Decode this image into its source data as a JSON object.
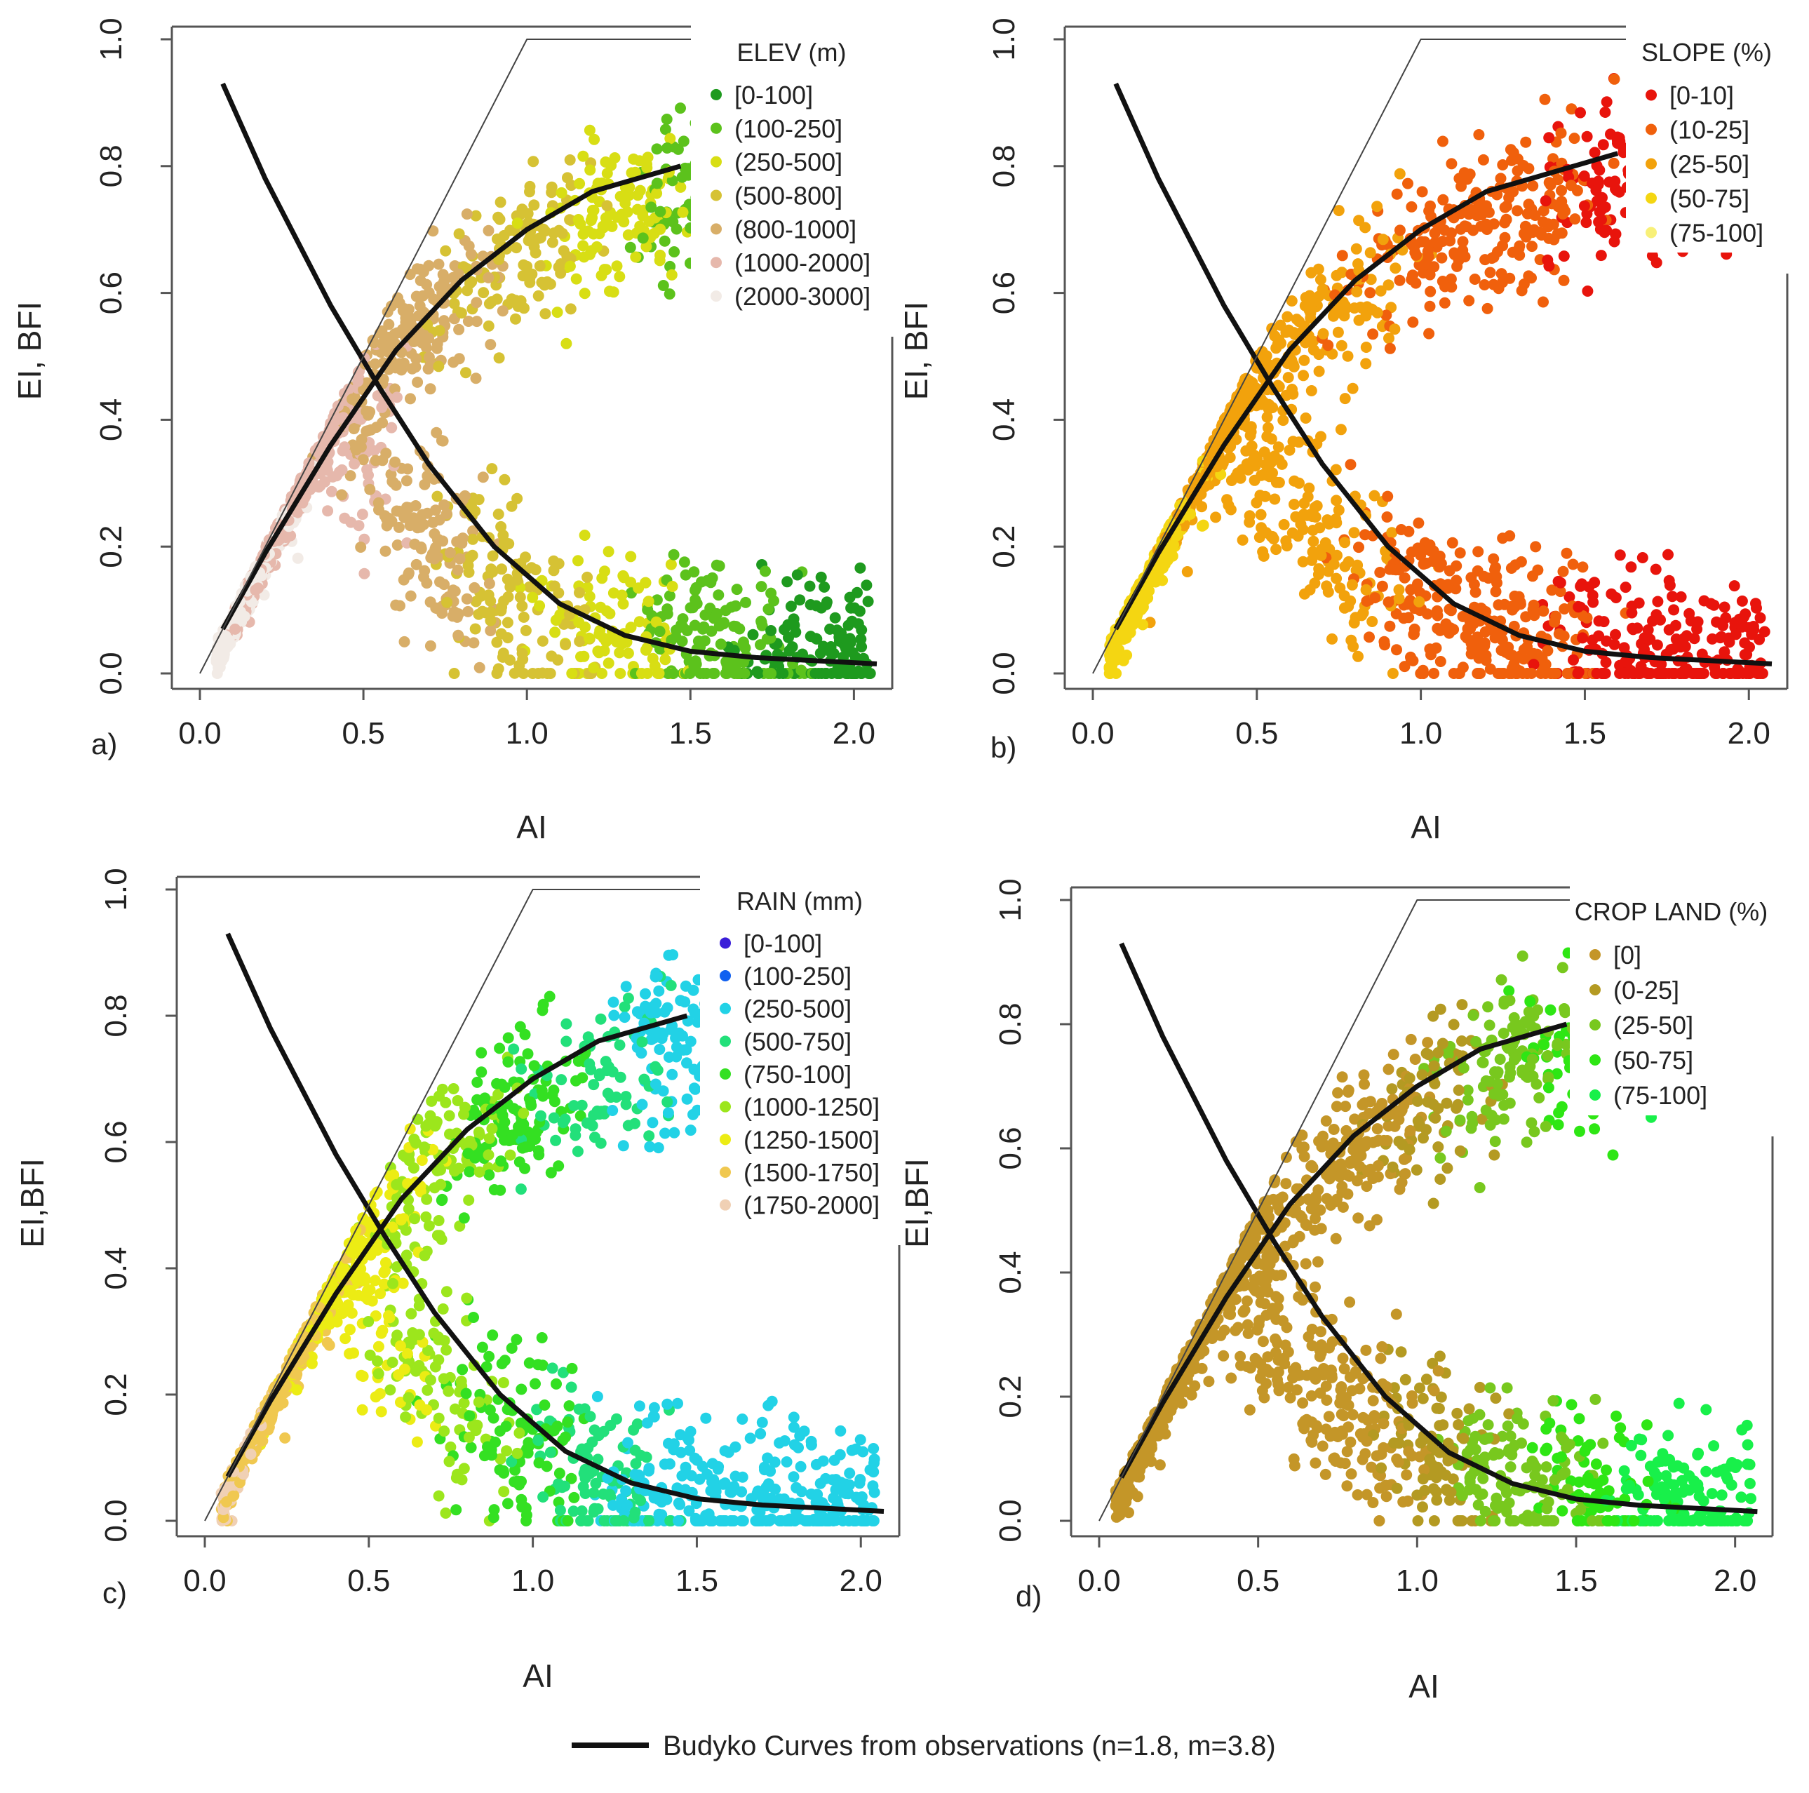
{
  "figure": {
    "footer": {
      "label": "Budyko Curves from observations (n=1.8, m=3.8)"
    }
  },
  "chart_data": [
    {
      "type": "scatter",
      "panel": "a)",
      "xlabel": "AI",
      "ylabel": "EI, BFI",
      "xlim": [
        0.0,
        2.1
      ],
      "ylim": [
        0.0,
        1.0
      ],
      "xticks": [
        "0.0",
        "0.5",
        "1.0",
        "1.5",
        "2.0"
      ],
      "yticks": [
        "0.0",
        "0.2",
        "0.4",
        "0.6",
        "0.8",
        "1.0"
      ],
      "legend_title": "ELEV (m)",
      "legend": [
        {
          "label": "[0-100]",
          "color": "#1e9a1e"
        },
        {
          "label": "(100-250]",
          "color": "#5cc21c"
        },
        {
          "label": "(250-500]",
          "color": "#d8de14"
        },
        {
          "label": "(500-800]",
          "color": "#d6c234"
        },
        {
          "label": "(800-1000]",
          "color": "#d8ae68"
        },
        {
          "label": "(1000-2000]",
          "color": "#e6b8ac"
        },
        {
          "label": "(2000-3000]",
          "color": "#f2ebe6"
        }
      ],
      "curves": [
        {
          "name": "EI",
          "x": [
            0.07,
            0.2,
            0.4,
            0.6,
            0.8,
            1.0,
            1.2,
            1.47
          ],
          "y": [
            0.07,
            0.19,
            0.36,
            0.51,
            0.62,
            0.7,
            0.76,
            0.8
          ]
        },
        {
          "name": "BFI",
          "x": [
            0.07,
            0.2,
            0.4,
            0.55,
            0.7,
            0.9,
            1.1,
            1.3,
            1.5,
            1.7,
            2.07
          ],
          "y": [
            0.93,
            0.78,
            0.58,
            0.45,
            0.33,
            0.2,
            0.11,
            0.06,
            0.035,
            0.025,
            0.015
          ]
        },
        {
          "name": "limit",
          "x": [
            0.0,
            1.0,
            2.07
          ],
          "y": [
            0.0,
            1.0,
            1.0
          ]
        }
      ]
    },
    {
      "type": "scatter",
      "panel": "b)",
      "xlabel": "AI",
      "ylabel": "EI, BFI",
      "xlim": [
        0.0,
        2.1
      ],
      "ylim": [
        0.0,
        1.0
      ],
      "xticks": [
        "0.0",
        "0.5",
        "1.0",
        "1.5",
        "2.0"
      ],
      "yticks": [
        "0.0",
        "0.2",
        "0.4",
        "0.6",
        "0.8",
        "1.0"
      ],
      "legend_title": "SLOPE (%)",
      "legend": [
        {
          "label": "[0-10]",
          "color": "#e8140c"
        },
        {
          "label": "(10-25]",
          "color": "#f0600c"
        },
        {
          "label": "(25-50]",
          "color": "#f2a20c"
        },
        {
          "label": "(50-75]",
          "color": "#f4d612"
        },
        {
          "label": "(75-100]",
          "color": "#f8f078"
        }
      ],
      "curves": [
        {
          "name": "EI",
          "x": [
            0.07,
            0.2,
            0.4,
            0.6,
            0.8,
            1.0,
            1.2,
            1.6
          ],
          "y": [
            0.07,
            0.19,
            0.36,
            0.51,
            0.62,
            0.7,
            0.76,
            0.82
          ]
        },
        {
          "name": "BFI",
          "x": [
            0.07,
            0.2,
            0.4,
            0.55,
            0.7,
            0.9,
            1.1,
            1.3,
            1.5,
            1.7,
            2.07
          ],
          "y": [
            0.93,
            0.78,
            0.58,
            0.45,
            0.33,
            0.2,
            0.11,
            0.06,
            0.035,
            0.025,
            0.015
          ]
        },
        {
          "name": "limit",
          "x": [
            0.0,
            1.0,
            2.07
          ],
          "y": [
            0.0,
            1.0,
            1.0
          ]
        }
      ]
    },
    {
      "type": "scatter",
      "panel": "c)",
      "xlabel": "AI",
      "ylabel": "EI,BFI",
      "xlim": [
        0.0,
        2.1
      ],
      "ylim": [
        0.0,
        1.0
      ],
      "xticks": [
        "0.0",
        "0.5",
        "1.0",
        "1.5",
        "2.0"
      ],
      "yticks": [
        "0.0",
        "0.2",
        "0.4",
        "0.6",
        "0.8",
        "1.0"
      ],
      "legend_title": "RAIN (mm)",
      "legend": [
        {
          "label": "[0-100]",
          "color": "#3a1ed8"
        },
        {
          "label": "(100-250]",
          "color": "#1060f0"
        },
        {
          "label": "(250-500]",
          "color": "#22d2e6"
        },
        {
          "label": "(500-750]",
          "color": "#22e07a"
        },
        {
          "label": "(750-100]",
          "color": "#34e022"
        },
        {
          "label": "(1000-1250]",
          "color": "#9ce61c"
        },
        {
          "label": "(1250-1500]",
          "color": "#ecec14"
        },
        {
          "label": "(1500-1750]",
          "color": "#f0c850"
        },
        {
          "label": "(1750-2000]",
          "color": "#f0d0b4"
        }
      ],
      "curves": [
        {
          "name": "EI",
          "x": [
            0.07,
            0.2,
            0.4,
            0.6,
            0.8,
            1.0,
            1.2,
            1.47
          ],
          "y": [
            0.07,
            0.19,
            0.36,
            0.51,
            0.62,
            0.7,
            0.76,
            0.8
          ]
        },
        {
          "name": "BFI",
          "x": [
            0.07,
            0.2,
            0.4,
            0.55,
            0.7,
            0.9,
            1.1,
            1.3,
            1.5,
            1.7,
            2.07
          ],
          "y": [
            0.93,
            0.78,
            0.58,
            0.45,
            0.33,
            0.2,
            0.11,
            0.06,
            0.035,
            0.025,
            0.015
          ]
        },
        {
          "name": "limit",
          "x": [
            0.0,
            1.0,
            2.07
          ],
          "y": [
            0.0,
            1.0,
            1.0
          ]
        }
      ]
    },
    {
      "type": "scatter",
      "panel": "d)",
      "xlabel": "AI",
      "ylabel": "EI,BFI",
      "xlim": [
        0.0,
        2.1
      ],
      "ylim": [
        0.0,
        1.0
      ],
      "xticks": [
        "0.0",
        "0.5",
        "1.0",
        "1.5",
        "2.0"
      ],
      "yticks": [
        "0.0",
        "0.2",
        "0.4",
        "0.6",
        "0.8",
        "1.0"
      ],
      "legend_title": "CROP LAND (%)",
      "legend": [
        {
          "label": "[0]",
          "color": "#c49628"
        },
        {
          "label": "(0-25]",
          "color": "#b49a22"
        },
        {
          "label": "(25-50]",
          "color": "#78c81e"
        },
        {
          "label": "(50-75]",
          "color": "#2ee614"
        },
        {
          "label": "(75-100]",
          "color": "#18f04a"
        }
      ],
      "curves": [
        {
          "name": "EI",
          "x": [
            0.07,
            0.2,
            0.4,
            0.6,
            0.8,
            1.0,
            1.2,
            1.47
          ],
          "y": [
            0.07,
            0.19,
            0.36,
            0.51,
            0.62,
            0.7,
            0.76,
            0.8
          ]
        },
        {
          "name": "BFI",
          "x": [
            0.07,
            0.2,
            0.4,
            0.55,
            0.7,
            0.9,
            1.1,
            1.3,
            1.5,
            1.7,
            2.07
          ],
          "y": [
            0.93,
            0.78,
            0.58,
            0.45,
            0.33,
            0.2,
            0.11,
            0.06,
            0.035,
            0.025,
            0.015
          ]
        },
        {
          "name": "limit",
          "x": [
            0.0,
            1.0,
            2.07
          ],
          "y": [
            0.0,
            1.0,
            1.0
          ]
        }
      ]
    }
  ]
}
